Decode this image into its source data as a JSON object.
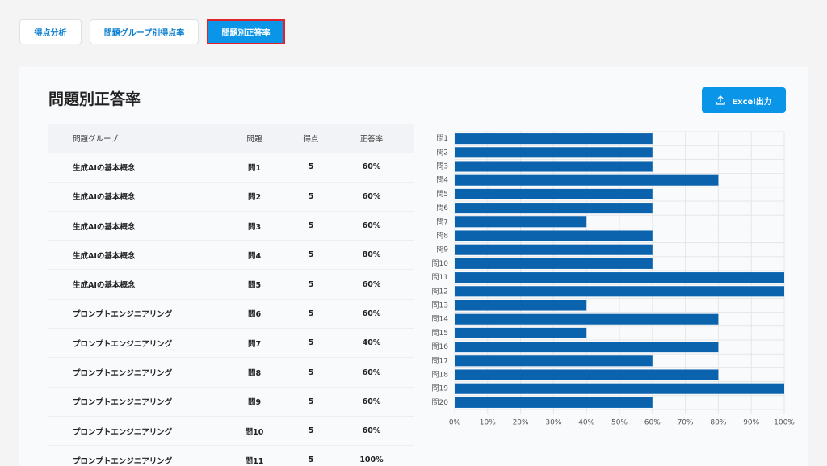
{
  "tabs": [
    "得点分析",
    "問題グループ別得点率",
    "問題別正答率"
  ],
  "title": "問題別正答率",
  "export_button": "Excel出力",
  "table": {
    "headers": [
      "問題グループ",
      "問題",
      "得点",
      "正答率"
    ],
    "rows": [
      [
        "生成AIの基本概念",
        "問1",
        "5",
        "60%"
      ],
      [
        "生成AIの基本概念",
        "問2",
        "5",
        "60%"
      ],
      [
        "生成AIの基本概念",
        "問3",
        "5",
        "60%"
      ],
      [
        "生成AIの基本概念",
        "問4",
        "5",
        "80%"
      ],
      [
        "生成AIの基本概念",
        "問5",
        "5",
        "60%"
      ],
      [
        "プロンプトエンジニアリング",
        "問6",
        "5",
        "60%"
      ],
      [
        "プロンプトエンジニアリング",
        "問7",
        "5",
        "40%"
      ],
      [
        "プロンプトエンジニアリング",
        "問8",
        "5",
        "60%"
      ],
      [
        "プロンプトエンジニアリング",
        "問9",
        "5",
        "60%"
      ],
      [
        "プロンプトエンジニアリング",
        "問10",
        "5",
        "60%"
      ],
      [
        "プロンプトエンジニアリング",
        "問11",
        "5",
        "100%"
      ]
    ]
  },
  "chart_data": {
    "type": "barh",
    "categories": [
      "問1",
      "問2",
      "問3",
      "問4",
      "問5",
      "問6",
      "問7",
      "問8",
      "問9",
      "問10",
      "問11",
      "問12",
      "問13",
      "問14",
      "問15",
      "問16",
      "問17",
      "問18",
      "問19",
      "問20"
    ],
    "values": [
      60,
      60,
      60,
      80,
      60,
      60,
      40,
      60,
      60,
      60,
      100,
      100,
      40,
      80,
      40,
      80,
      60,
      80,
      100,
      60
    ],
    "color": "#0b63ae",
    "xlim": [
      0,
      100
    ],
    "xticks": [
      {
        "value": 0,
        "label": "0%"
      },
      {
        "value": 10,
        "label": "10%"
      },
      {
        "value": 20,
        "label": "20%"
      },
      {
        "value": 30,
        "label": "30%"
      },
      {
        "value": 40,
        "label": "40%"
      },
      {
        "value": 50,
        "label": "50%"
      },
      {
        "value": 60,
        "label": "60%"
      },
      {
        "value": 70,
        "label": "70%"
      },
      {
        "value": 80,
        "label": "80%"
      },
      {
        "value": 90,
        "label": "90%"
      },
      {
        "value": 100,
        "label": "100%"
      }
    ],
    "grid": true
  }
}
